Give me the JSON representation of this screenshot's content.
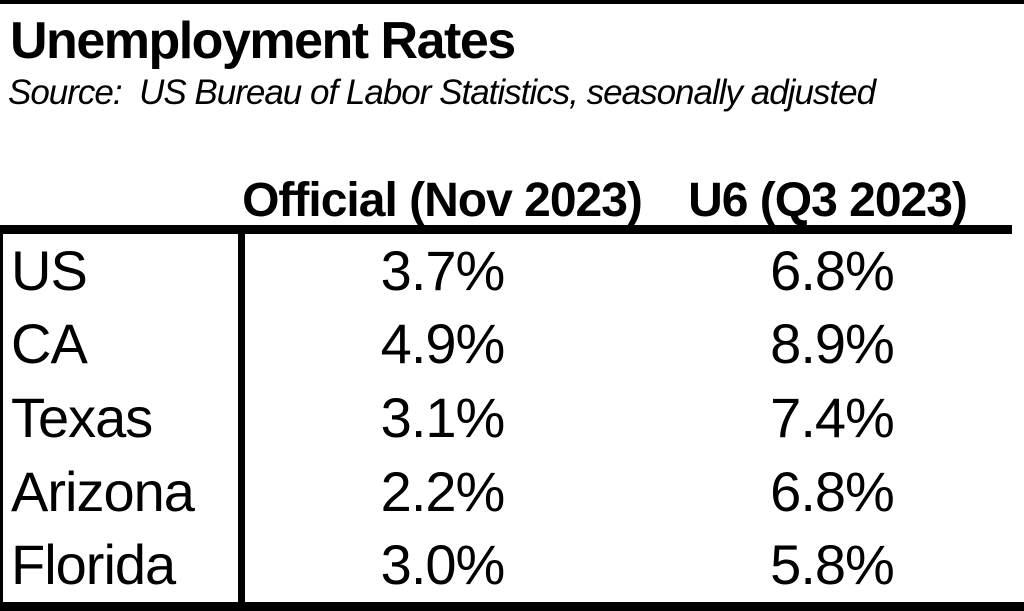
{
  "page": {
    "title": "Unemployment Rates",
    "source_line": "Source:  US Bureau of Labor Statistics, seasonally adjusted"
  },
  "table": {
    "header": {
      "region": "",
      "official": "Official (Nov 2023)",
      "u6": "U6 (Q3 2023)"
    },
    "rows": [
      {
        "label": "US",
        "official": "3.7%",
        "u6": "6.8%"
      },
      {
        "label": "CA",
        "official": "4.9%",
        "u6": "8.9%"
      },
      {
        "label": "Texas",
        "official": "3.1%",
        "u6": "7.4%"
      },
      {
        "label": "Arizona",
        "official": "2.2%",
        "u6": "6.8%"
      },
      {
        "label": "Florida",
        "official": "3.0%",
        "u6": "5.8%"
      }
    ]
  },
  "colors": {
    "text": "#000000",
    "background": "#ffffff",
    "rule": "#000000"
  },
  "chart_data": {
    "type": "table",
    "title": "Unemployment Rates",
    "source": "US Bureau of Labor Statistics, seasonally adjusted",
    "categories": [
      "US",
      "CA",
      "Texas",
      "Arizona",
      "Florida"
    ],
    "series": [
      {
        "name": "Official (Nov 2023)",
        "values": [
          3.7,
          4.9,
          3.1,
          2.2,
          3.0
        ]
      },
      {
        "name": "U6 (Q3 2023)",
        "values": [
          6.8,
          8.9,
          7.4,
          6.8,
          5.8
        ]
      }
    ],
    "unit": "percent",
    "legend_position": "none",
    "grid": false
  }
}
